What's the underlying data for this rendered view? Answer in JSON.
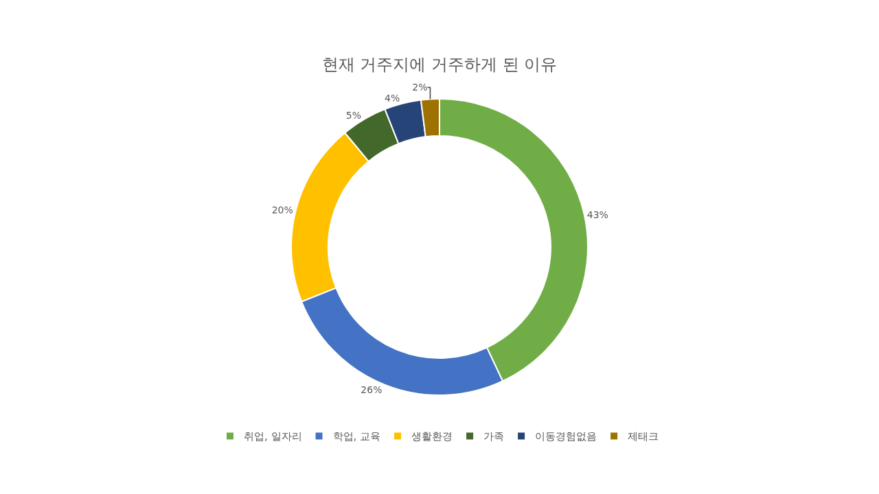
{
  "chart_data": {
    "type": "donut",
    "title": "현재 거주지에 거주하게 된 이유",
    "categories": [
      "취업, 일자리",
      "학업, 교육",
      "생활환경",
      "가족",
      "이동경험없음",
      "제태크"
    ],
    "values": [
      43,
      26,
      20,
      5,
      4,
      2
    ],
    "value_labels": [
      "43%",
      "26%",
      "20%",
      "5%",
      "4%",
      "2%"
    ],
    "colors": [
      "#70ad47",
      "#4472c4",
      "#ffc000",
      "#43682b",
      "#264478",
      "#9e7200"
    ],
    "legend": "bottom"
  }
}
